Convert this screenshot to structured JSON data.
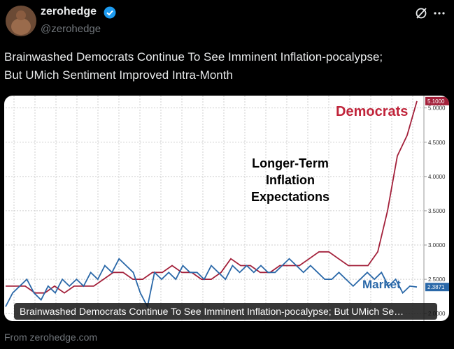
{
  "header": {
    "name": "zerohedge",
    "handle": "@zerohedge"
  },
  "tweet": {
    "lines": [
      "Brainwashed Democrats Continue To See Imminent Inflation-pocalypse;",
      "But UMich Sentiment Improved Intra-Month"
    ]
  },
  "chart_data": {
    "type": "line",
    "annotations": [
      "Democrats",
      "Longer-Term",
      "Inflation",
      "Expectations",
      "Market"
    ],
    "ylim": [
      1.89,
      5.18
    ],
    "yticks": [
      {
        "value": 2.0,
        "label": "2.0000"
      },
      {
        "value": 2.5,
        "label": "2.5000"
      },
      {
        "value": 3.0,
        "label": "3.0000"
      },
      {
        "value": 3.5,
        "label": "3.5000"
      },
      {
        "value": 4.0,
        "label": "4.0000"
      },
      {
        "value": 4.5,
        "label": "4.5000"
      },
      {
        "value": 5.0,
        "label": "5.0000"
      }
    ],
    "grid": true,
    "series": [
      {
        "name": "Democrats",
        "color": "#a3203a",
        "end_label": "5.1000",
        "values": [
          2.4,
          2.4,
          2.4,
          2.3,
          2.3,
          2.4,
          2.3,
          2.4,
          2.4,
          2.4,
          2.5,
          2.6,
          2.6,
          2.5,
          2.5,
          2.6,
          2.6,
          2.7,
          2.6,
          2.6,
          2.5,
          2.5,
          2.6,
          2.8,
          2.7,
          2.7,
          2.6,
          2.6,
          2.7,
          2.7,
          2.7,
          2.8,
          2.9,
          2.9,
          2.8,
          2.7,
          2.7,
          2.7,
          2.9,
          3.5,
          4.3,
          4.6,
          5.1
        ]
      },
      {
        "name": "Market",
        "color": "#2a68a8",
        "end_label": "2.3871",
        "values": [
          2.1,
          2.3,
          2.4,
          2.5,
          2.3,
          2.2,
          2.4,
          2.3,
          2.5,
          2.4,
          2.5,
          2.4,
          2.6,
          2.5,
          2.7,
          2.6,
          2.8,
          2.7,
          2.6,
          2.3,
          2.1,
          2.6,
          2.5,
          2.6,
          2.5,
          2.7,
          2.6,
          2.6,
          2.5,
          2.7,
          2.6,
          2.5,
          2.7,
          2.6,
          2.7,
          2.6,
          2.7,
          2.6,
          2.6,
          2.7,
          2.8,
          2.7,
          2.6,
          2.7,
          2.6,
          2.5,
          2.5,
          2.6,
          2.5,
          2.4,
          2.5,
          2.6,
          2.5,
          2.6,
          2.4,
          2.5,
          2.3,
          2.4,
          2.3871
        ]
      }
    ]
  },
  "caption": "Brainwashed Democrats Continue To See Imminent Inflation-pocalypse; But UMich Se…",
  "source": "From zerohedge.com"
}
